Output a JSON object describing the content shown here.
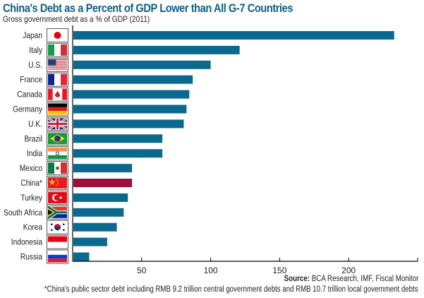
{
  "colors": {
    "bar": "#0b6990",
    "highlight_bar": "#9b0f3b",
    "title": "#0f5f85",
    "axis": "#000000"
  },
  "source_label": "Source:",
  "source_text": " BCA Research, IMF, Fiscal Monitor",
  "footnote": "*China's public sector debt including RMB 9.2 trillion central government debts and RMB 10.7 trillion local government debts",
  "chart_data": {
    "type": "bar",
    "orientation": "horizontal",
    "title": "China's Debt as a Percent of GDP Lower than All G-7 Countries",
    "subtitle": "Gross government debt as a % of GDP (2011)",
    "xlabel": "",
    "ylabel": "",
    "xlim": [
      0,
      250
    ],
    "xticks": [
      50,
      100,
      150,
      200
    ],
    "grid": false,
    "legend": "none",
    "highlight": "China*",
    "categories": [
      "Japan",
      "Italy",
      "U.S.",
      "France",
      "Canada",
      "Germany",
      "U.K.",
      "Brazil",
      "India",
      "Mexico",
      "China*",
      "Turkey",
      "South Africa",
      "Korea",
      "Indonesia",
      "Russia"
    ],
    "flags": [
      "japan-flag",
      "italy-flag",
      "us-flag",
      "france-flag",
      "canada-flag",
      "germany-flag",
      "uk-flag",
      "brazil-flag",
      "india-flag",
      "mexico-flag",
      "china-flag",
      "turkey-flag",
      "south-africa-flag",
      "korea-flag",
      "indonesia-flag",
      "russia-flag"
    ],
    "values": [
      233,
      121,
      100,
      87,
      84.5,
      82.5,
      80.5,
      65,
      65,
      43,
      43,
      40,
      37,
      32,
      25,
      12
    ]
  }
}
